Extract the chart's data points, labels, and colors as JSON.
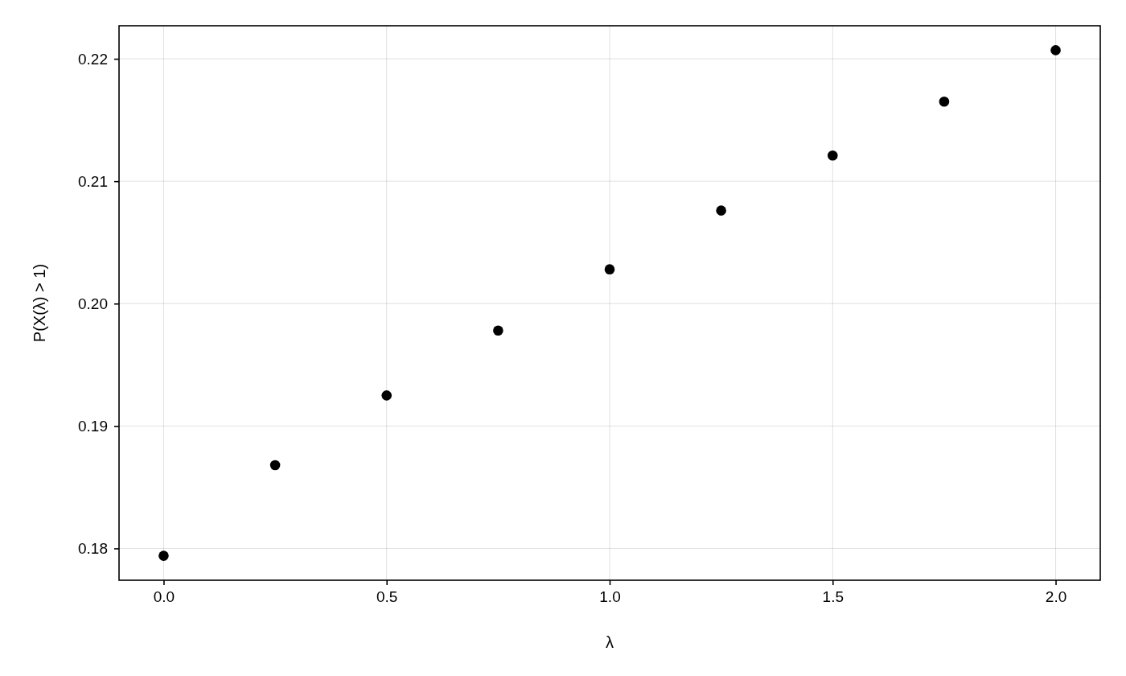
{
  "chart_data": {
    "type": "scatter",
    "xlabel": "λ",
    "ylabel": "P(X(λ) > 1)",
    "x": [
      0,
      0.25,
      0.5,
      0.75,
      1.0,
      1.25,
      1.5,
      1.75,
      2.0
    ],
    "series": [
      {
        "color": "#000000",
        "values": [
          0.1794,
          0.1868,
          0.1925,
          0.1978,
          0.2028,
          0.2076,
          0.2121,
          0.2165,
          0.2207
        ]
      }
    ],
    "xlim": [
      -0.1,
      2.1
    ],
    "ylim": [
      0.1774,
      0.2227
    ],
    "xticks": [
      {
        "value": 0,
        "label": "0.0"
      },
      0.5,
      {
        "value": 1,
        "label": "1.0"
      },
      1.5,
      {
        "value": 2,
        "label": "2.0"
      }
    ],
    "yticks": [
      {
        "value": 0.18,
        "label": "0.18"
      },
      0.19,
      {
        "value": 0.2,
        "label": "0.20"
      },
      0.21,
      0.22
    ],
    "grid": true,
    "marker": "circle"
  }
}
